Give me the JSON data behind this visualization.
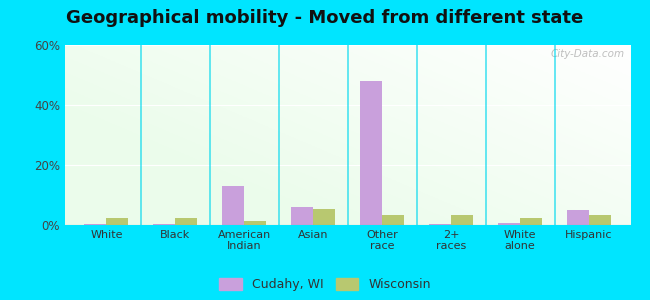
{
  "title": "Geographical mobility - Moved from different state",
  "categories": [
    "White",
    "Black",
    "American\nIndian",
    "Asian",
    "Other\nrace",
    "2+\nraces",
    "White\nalone",
    "Hispanic"
  ],
  "cudahy_values": [
    0.5,
    0.3,
    13.0,
    6.0,
    48.0,
    0.3,
    0.7,
    5.0
  ],
  "wisconsin_values": [
    2.2,
    2.2,
    1.2,
    5.5,
    3.5,
    3.5,
    2.2,
    3.5
  ],
  "cudahy_color": "#c9a0dc",
  "wisconsin_color": "#b8c870",
  "ylim": [
    0,
    60
  ],
  "yticks": [
    0,
    20,
    40,
    60
  ],
  "ytick_labels": [
    "0%",
    "20%",
    "40%",
    "60%"
  ],
  "outer_background": "#00e5ff",
  "title_fontsize": 13,
  "bar_width": 0.32,
  "legend_cudahy": "Cudahy, WI",
  "legend_wisconsin": "Wisconsin",
  "watermark": "City-Data.com"
}
